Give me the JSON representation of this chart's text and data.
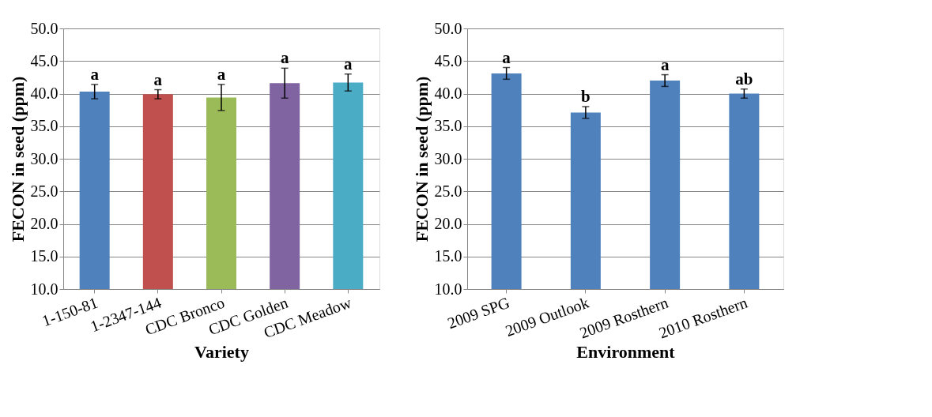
{
  "chart_data": [
    {
      "type": "bar",
      "xlabel": "Variety",
      "ylabel": "FECON in seed (ppm)",
      "categories": [
        "1-150-81",
        "1-2347-144",
        "CDC Bronco",
        "CDC Golden",
        "CDC Meadow"
      ],
      "values": [
        40.3,
        39.9,
        39.4,
        41.6,
        41.7
      ],
      "colors": [
        "#4f81bd",
        "#c0504d",
        "#9bbb59",
        "#8064a2",
        "#4bacc6"
      ],
      "errors": [
        1.1,
        0.7,
        2.0,
        2.3,
        1.3
      ],
      "ylim": [
        10,
        50
      ],
      "yticks": [
        {
          "value": 10,
          "label": "10.0"
        },
        {
          "value": 15,
          "label": "15.0"
        },
        {
          "value": 20,
          "label": "20.0"
        },
        {
          "value": 25,
          "label": "25.0"
        },
        {
          "value": 30,
          "label": "30.0"
        },
        {
          "value": 35,
          "label": "35.0"
        },
        {
          "value": 40,
          "label": "40.0"
        },
        {
          "value": 45,
          "label": "45.0"
        },
        {
          "value": 50,
          "label": "50.0"
        }
      ],
      "grid": "y",
      "annotations": [
        {
          "text": "a",
          "x": "1-150-81",
          "y": 41.35
        },
        {
          "text": "a",
          "x": "1-2347-144",
          "y": 40.6
        },
        {
          "text": "a",
          "x": "CDC Bronco",
          "y": 41.35
        },
        {
          "text": "a",
          "x": "CDC Golden",
          "y": 43.9
        },
        {
          "text": "a",
          "x": "CDC Meadow",
          "y": 43.0
        }
      ]
    },
    {
      "type": "bar",
      "xlabel": "Environment",
      "ylabel": "FECON in seed (ppm)",
      "categories": [
        "2009 SPG",
        "2009 Outlook",
        "2009 Rosthern",
        "2010 Rosthern"
      ],
      "values": [
        43.1,
        37.1,
        42.0,
        40.0
      ],
      "colors": [
        "#4f81bd",
        "#4f81bd",
        "#4f81bd",
        "#4f81bd"
      ],
      "errors": [
        0.9,
        0.9,
        0.9,
        0.7
      ],
      "ylim": [
        10,
        50
      ],
      "yticks": [
        {
          "value": 10,
          "label": "10.0"
        },
        {
          "value": 15,
          "label": "15.0"
        },
        {
          "value": 20,
          "label": "20.0"
        },
        {
          "value": 25,
          "label": "25.0"
        },
        {
          "value": 30,
          "label": "30.0"
        },
        {
          "value": 35,
          "label": "35.0"
        },
        {
          "value": 40,
          "label": "40.0"
        },
        {
          "value": 45,
          "label": "45.0"
        },
        {
          "value": 50,
          "label": "50.0"
        }
      ],
      "grid": "y",
      "annotations": [
        {
          "text": "a",
          "x": "2009 SPG",
          "y": 43.95
        },
        {
          "text": "b",
          "x": "2009 Outlook",
          "y": 38.0
        },
        {
          "text": "a",
          "x": "2009 Rosthern",
          "y": 42.9
        },
        {
          "text": "ab",
          "x": "2010 Rosthern",
          "y": 40.7
        }
      ]
    }
  ]
}
